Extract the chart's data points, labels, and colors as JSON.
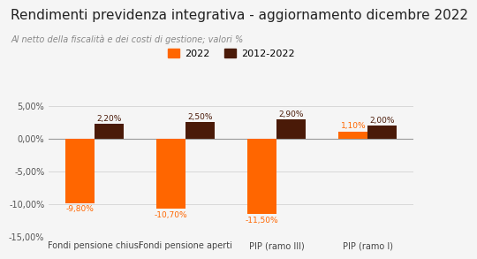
{
  "title": "Rendimenti previdenza integrativa - aggiornamento dicembre 2022",
  "subtitle": "Al netto della fiscalità e dei costi di gestione; valori %",
  "categories": [
    "Fondi pensione chiusi",
    "Fondi pensione aperti",
    "PIP (ramo III)",
    "PIP (ramo I)"
  ],
  "values_2022": [
    -9.8,
    -10.7,
    -11.5,
    1.1
  ],
  "values_2012_2022": [
    2.2,
    2.5,
    2.9,
    2.0
  ],
  "color_2022": "#FF6600",
  "color_2012_2022": "#4A1A08",
  "label_2022": "2022",
  "label_2012_2022": "2012-2022",
  "ylim": [
    -15.0,
    7.0
  ],
  "yticks": [
    -15.0,
    -10.0,
    -5.0,
    0.0,
    5.0
  ],
  "ytick_labels": [
    "-15,00%",
    "-10,00%",
    "-5,00%",
    "0,00%",
    "5,00%"
  ],
  "background_color": "#F5F5F5",
  "bar_width": 0.32,
  "label_color_2022": "#FF6600",
  "label_color_2012_2022": "#4A1A08",
  "title_fontsize": 11,
  "subtitle_fontsize": 7,
  "legend_fontsize": 8,
  "tick_fontsize": 7,
  "xlabel_fontsize": 7,
  "value_label_fontsize": 6.5
}
